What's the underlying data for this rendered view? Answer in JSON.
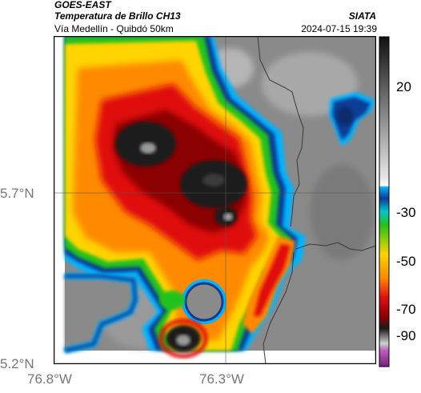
{
  "header": {
    "satellite": "GOES-EAST",
    "product": "Temperatura de Brillo CH13",
    "region": "Vía Medellín - Quibdó 50km",
    "brand": "SIATA",
    "datetime": "2024-07-15 19:39"
  },
  "axes": {
    "latitude_labels": [
      "5.7°N",
      "5.2°N"
    ],
    "longitude_labels": [
      "76.8°W",
      "76.3°W"
    ]
  },
  "colorbar": {
    "labels": [
      "20",
      "-30",
      "-50",
      "-70",
      "-90"
    ]
  },
  "colors": {
    "background_gray": "#8a8a8a",
    "coldest_top": "#ffffff",
    "cold_core": "#1a1a1a",
    "deep_red": "#8b0000",
    "red": "#e01010",
    "orange": "#ff8a00",
    "yellow": "#ffd400",
    "green": "#22c21a",
    "light_blue": "#00b4ff",
    "dark_blue": "#0a3c96",
    "magenta": "#a0209a"
  }
}
